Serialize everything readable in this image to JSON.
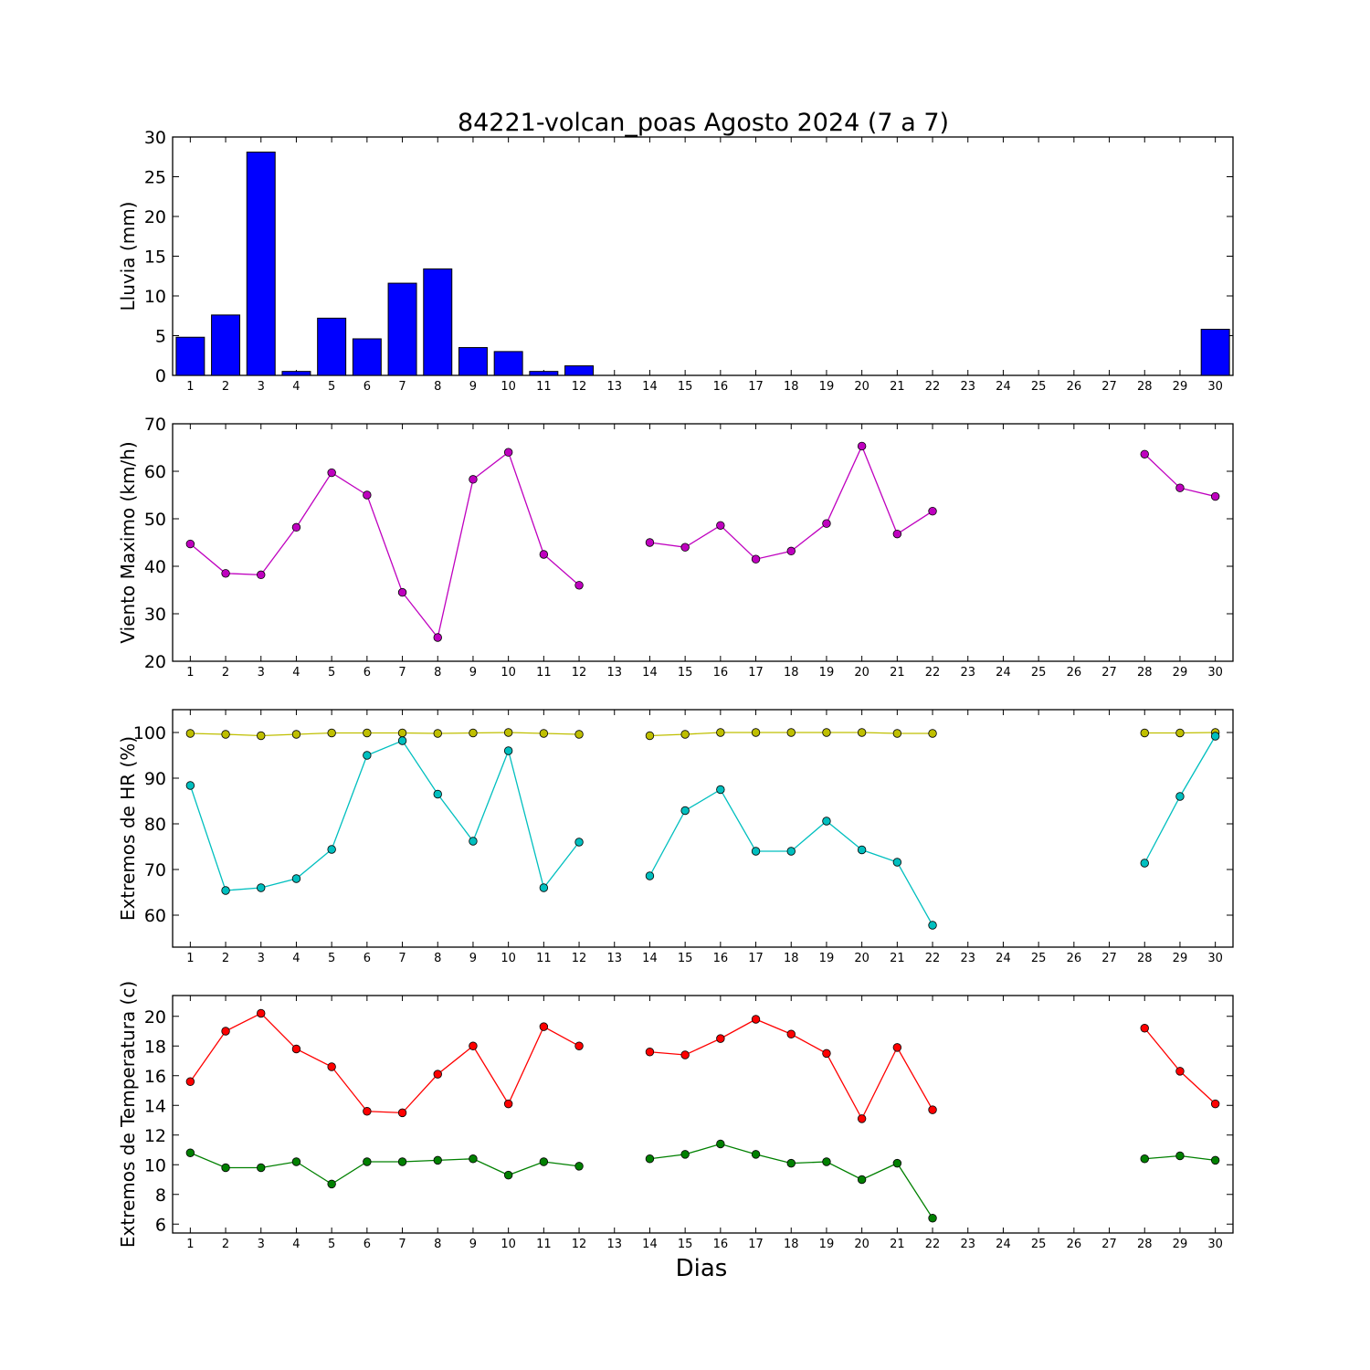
{
  "title": "84221-volcan_poas Agosto 2024  (7 a 7)",
  "xlabel": "Dias",
  "colors": {
    "rain": "#0000ff",
    "wind": "#bf00bf",
    "hr_max": "#bfbf00",
    "hr_min": "#00bfbf",
    "temp_max": "#ff0000",
    "temp_min": "#008000"
  },
  "chart_data": [
    {
      "type": "bar",
      "ylabel": "Lluvia (mm)",
      "x": [
        1,
        2,
        3,
        4,
        5,
        6,
        7,
        8,
        9,
        10,
        11,
        12,
        13,
        14,
        15,
        16,
        17,
        18,
        19,
        20,
        21,
        22,
        23,
        24,
        25,
        26,
        27,
        28,
        29,
        30
      ],
      "ylim": [
        0,
        30
      ],
      "yticks": [
        0,
        5,
        10,
        15,
        20,
        25,
        30
      ],
      "series": [
        {
          "values": [
            4.8,
            7.6,
            28.1,
            0.5,
            7.2,
            4.6,
            11.6,
            13.4,
            3.5,
            3.0,
            0.5,
            1.2,
            0,
            0,
            0,
            0,
            0,
            0,
            0,
            0,
            0,
            0,
            0,
            0,
            0,
            0,
            0,
            0,
            0,
            5.8
          ],
          "color": "#0000ff"
        }
      ]
    },
    {
      "type": "line",
      "ylabel": "Viento Maximo (km/h)",
      "x": [
        1,
        2,
        3,
        4,
        5,
        6,
        7,
        8,
        9,
        10,
        11,
        12,
        13,
        14,
        15,
        16,
        17,
        18,
        19,
        20,
        21,
        22,
        23,
        24,
        25,
        26,
        27,
        28,
        29,
        30
      ],
      "ylim": [
        20,
        70
      ],
      "yticks": [
        20,
        30,
        40,
        50,
        60,
        70
      ],
      "series": [
        {
          "values": [
            44.7,
            38.5,
            38.2,
            48.2,
            59.7,
            55.0,
            34.5,
            25.0,
            58.3,
            64.0,
            42.5,
            36.0,
            null,
            45.0,
            44.0,
            48.6,
            41.5,
            43.2,
            49.0,
            65.3,
            46.8,
            51.6,
            null,
            null,
            null,
            null,
            null,
            63.6,
            56.5,
            54.7
          ],
          "color": "#bf00bf"
        }
      ]
    },
    {
      "type": "line",
      "ylabel": "Extremos de HR (%)",
      "x": [
        1,
        2,
        3,
        4,
        5,
        6,
        7,
        8,
        9,
        10,
        11,
        12,
        13,
        14,
        15,
        16,
        17,
        18,
        19,
        20,
        21,
        22,
        23,
        24,
        25,
        26,
        27,
        28,
        29,
        30
      ],
      "ylim": [
        53,
        105
      ],
      "yticks": [
        60,
        70,
        80,
        90,
        100
      ],
      "series": [
        {
          "values": [
            99.8,
            99.6,
            99.3,
            99.6,
            99.9,
            99.9,
            99.9,
            99.8,
            99.9,
            100.0,
            99.8,
            99.6,
            null,
            99.3,
            99.6,
            100.0,
            100.0,
            100.0,
            100.0,
            100.0,
            99.8,
            99.8,
            null,
            null,
            null,
            null,
            null,
            99.9,
            99.9,
            100.0
          ],
          "color": "#bfbf00"
        },
        {
          "values": [
            88.4,
            65.4,
            66.0,
            68.0,
            74.4,
            95.0,
            98.2,
            86.5,
            76.2,
            96.0,
            66.0,
            76.0,
            null,
            68.6,
            82.9,
            87.5,
            74.0,
            74.0,
            80.6,
            74.3,
            71.6,
            57.8,
            null,
            null,
            null,
            null,
            null,
            71.4,
            86.0,
            99.2
          ],
          "color": "#00bfbf"
        }
      ]
    },
    {
      "type": "line",
      "ylabel": "Extremos de Temperatura (c)",
      "x": [
        1,
        2,
        3,
        4,
        5,
        6,
        7,
        8,
        9,
        10,
        11,
        12,
        13,
        14,
        15,
        16,
        17,
        18,
        19,
        20,
        21,
        22,
        23,
        24,
        25,
        26,
        27,
        28,
        29,
        30
      ],
      "ylim": [
        5.4,
        21.4
      ],
      "yticks": [
        6,
        8,
        10,
        12,
        14,
        16,
        18,
        20
      ],
      "series": [
        {
          "values": [
            15.6,
            19.0,
            20.2,
            17.8,
            16.6,
            13.6,
            13.5,
            16.1,
            18.0,
            14.1,
            19.3,
            18.0,
            null,
            17.6,
            17.4,
            18.5,
            19.8,
            18.8,
            17.5,
            13.1,
            17.9,
            13.7,
            null,
            null,
            null,
            null,
            null,
            19.2,
            16.3,
            14.1
          ],
          "color": "#ff0000"
        },
        {
          "values": [
            10.8,
            9.8,
            9.8,
            10.2,
            8.7,
            10.2,
            10.2,
            10.3,
            10.4,
            9.3,
            10.2,
            9.9,
            null,
            10.4,
            10.7,
            11.4,
            10.7,
            10.1,
            10.2,
            9.0,
            10.1,
            6.4,
            null,
            null,
            null,
            null,
            null,
            10.4,
            10.6,
            10.3
          ],
          "color": "#008000"
        }
      ]
    }
  ]
}
